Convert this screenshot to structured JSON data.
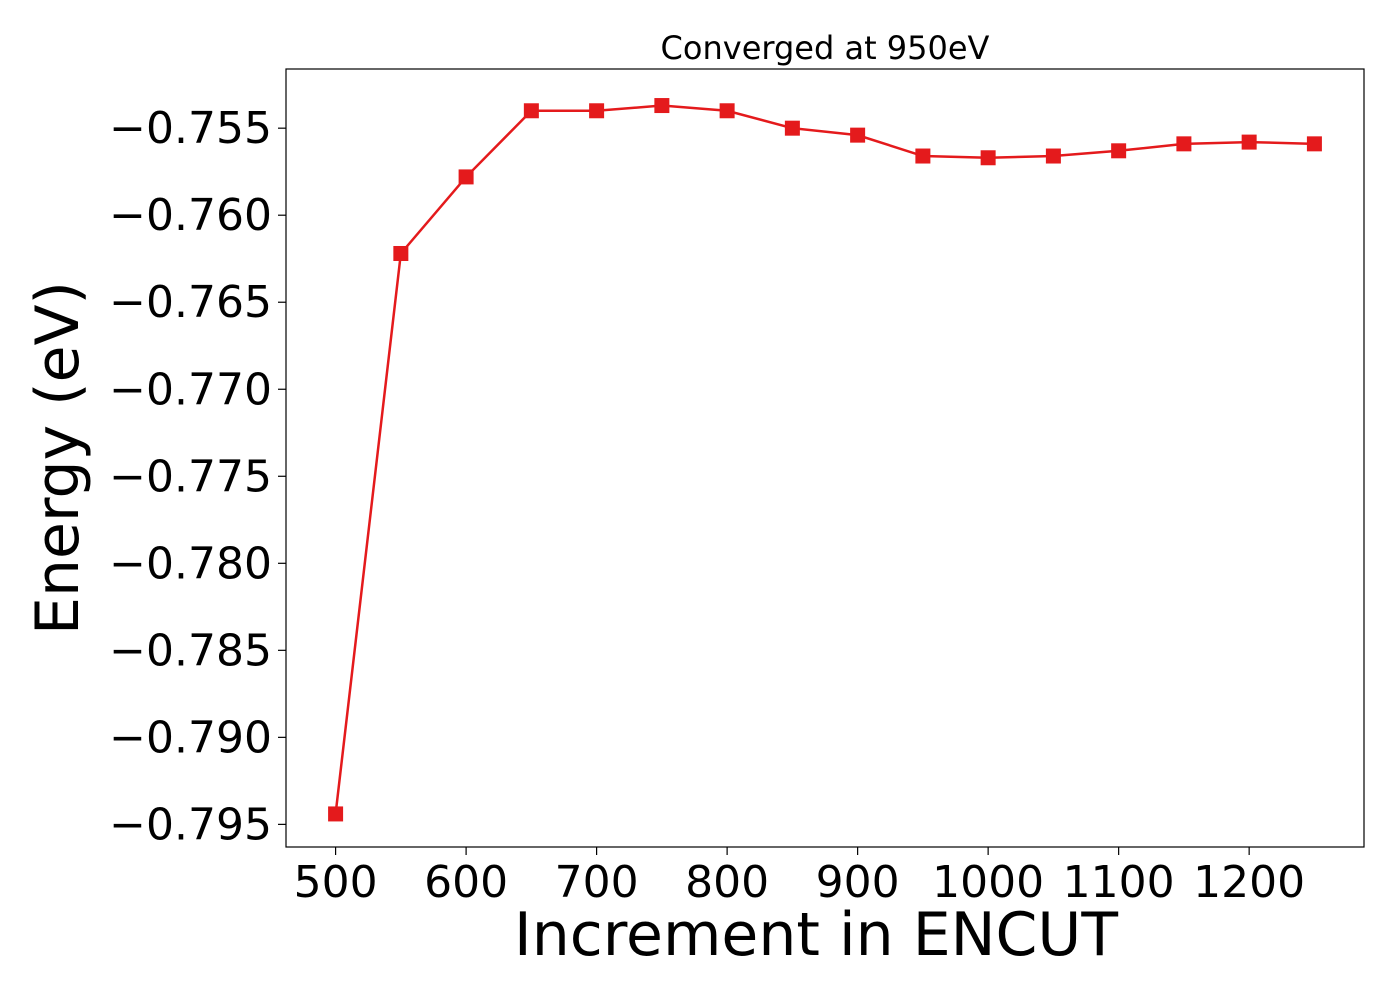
{
  "chart_data": {
    "type": "line",
    "title": "Converged at 950eV",
    "xlabel": "Increment in ENCUT",
    "ylabel": "Energy (eV)",
    "xlim": [
      462,
      1288
    ],
    "ylim": [
      -0.7963,
      -0.7516
    ],
    "xticks": [
      500,
      600,
      700,
      800,
      900,
      1000,
      1100,
      1200
    ],
    "xtick_labels": [
      "500",
      "600",
      "700",
      "800",
      "900",
      "1000",
      "1100",
      "1200"
    ],
    "yticks": [
      -0.755,
      -0.76,
      -0.765,
      -0.77,
      -0.775,
      -0.78,
      -0.785,
      -0.79,
      -0.795
    ],
    "ytick_labels": [
      "−0.755",
      "−0.760",
      "−0.765",
      "−0.770",
      "−0.775",
      "−0.780",
      "−0.785",
      "−0.790",
      "−0.795"
    ],
    "grid": false,
    "legend": "none",
    "series": [
      {
        "color": "#e41a1c",
        "marker": "square",
        "x": [
          500,
          550,
          600,
          650,
          700,
          750,
          800,
          850,
          900,
          950,
          1000,
          1050,
          1100,
          1150,
          1200,
          1250
        ],
        "y": [
          -0.7944,
          -0.7622,
          -0.7578,
          -0.754,
          -0.754,
          -0.7537,
          -0.754,
          -0.755,
          -0.7554,
          -0.7566,
          -0.7567,
          -0.7566,
          -0.7563,
          -0.7559,
          -0.7558,
          -0.7559
        ]
      }
    ]
  }
}
